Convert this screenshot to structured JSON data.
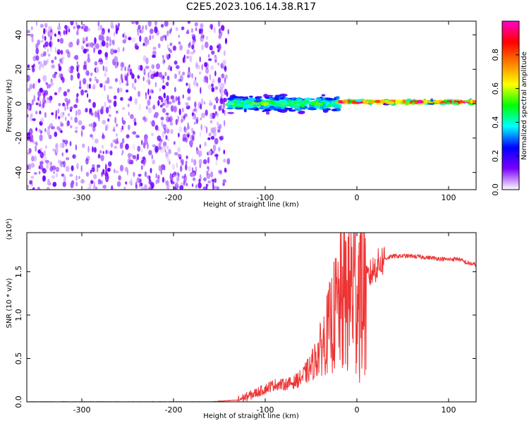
{
  "figure": {
    "title": "C2E5.2023.106.14.38.R17"
  },
  "chart_data": [
    {
      "type": "heatmap",
      "title": "C2E5.2023.106.14.38.R17",
      "xlabel": "Height of straight line (km)",
      "ylabel": "Frequency (Hz)",
      "xlim": [
        -360,
        130
      ],
      "ylim": [
        -50,
        48
      ],
      "x_ticks": [
        -300,
        -200,
        -100,
        0,
        100
      ],
      "x_tick_labels": [
        "-300",
        "-200",
        "-100",
        "0",
        "100"
      ],
      "y_ticks": [
        -40,
        -20,
        0,
        20,
        40
      ],
      "y_tick_labels": [
        "-40",
        "-20",
        "0",
        "20",
        "40"
      ],
      "colorbar": {
        "label": "Normalized spectral amplitude",
        "range": [
          0.0,
          1.0
        ],
        "ticks": [
          0.0,
          0.2,
          0.4,
          0.6,
          0.8
        ],
        "tick_labels": [
          "0.0",
          "0.2",
          "0.4",
          "0.6",
          "0.8"
        ],
        "colors": [
          "#ffffff",
          "#7b00ff",
          "#0000ff",
          "#00ffff",
          "#00ff00",
          "#ffff00",
          "#ff8000",
          "#ff0000",
          "#ff00c8"
        ]
      },
      "regions": [
        {
          "name": "noise",
          "x": [
            -360,
            -140
          ],
          "freq_range": [
            -50,
            48
          ],
          "amplitude": 0.1
        },
        {
          "name": "signal-turbulent",
          "x": [
            -140,
            -20
          ],
          "freq_center": 0,
          "freq_spread": 6,
          "amplitude": 0.5
        },
        {
          "name": "signal-stable",
          "x": [
            -20,
            130
          ],
          "freq_center": 1,
          "freq_spread": 1.5,
          "amplitude": 0.9
        }
      ]
    },
    {
      "type": "line",
      "xlabel": "Height of straight line (km)",
      "ylabel": "SNR (10 * v/v)",
      "yscale_label": "(x10⁴)",
      "xlim": [
        -360,
        130
      ],
      "ylim": [
        0,
        1.95
      ],
      "x_ticks": [
        -300,
        -200,
        -100,
        0,
        100
      ],
      "x_tick_labels": [
        "-300",
        "-200",
        "-100",
        "0",
        "100"
      ],
      "y_ticks": [
        0.0,
        0.5,
        1.0,
        1.5
      ],
      "y_tick_labels": [
        "0.0",
        "0.5",
        "1.0",
        "1.5"
      ],
      "color": "#ee3333",
      "series": [
        {
          "name": "SNR",
          "x": [
            -360,
            -300,
            -250,
            -200,
            -160,
            -130,
            -115,
            -100,
            -90,
            -80,
            -70,
            -60,
            -50,
            -40,
            -30,
            -20,
            -10,
            -5,
            0,
            5,
            10,
            20,
            30,
            40,
            60,
            80,
            100,
            110,
            120,
            130
          ],
          "values": [
            0.0,
            0.0,
            0.0,
            0.0,
            0.0,
            0.02,
            0.08,
            0.15,
            0.2,
            0.2,
            0.22,
            0.28,
            0.4,
            0.6,
            0.85,
            1.1,
            1.25,
            1.35,
            1.35,
            1.3,
            1.4,
            1.55,
            1.65,
            1.68,
            1.68,
            1.66,
            1.64,
            1.65,
            1.6,
            1.58
          ]
        }
      ]
    }
  ]
}
